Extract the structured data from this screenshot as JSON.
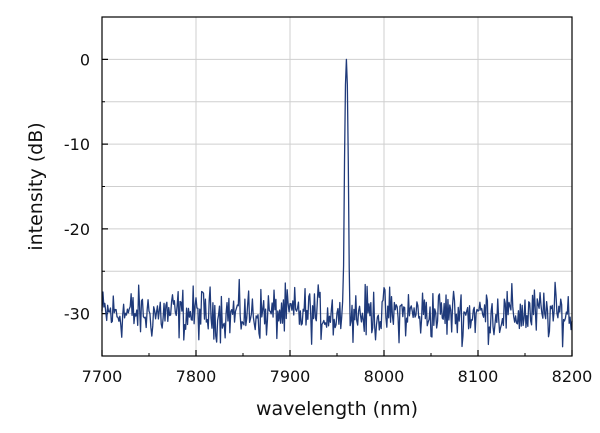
{
  "chart_data": {
    "type": "line",
    "title": "",
    "xlabel": "wavelength (nm)",
    "ylabel": "intensity (dB)",
    "xlim": [
      7700,
      8200
    ],
    "ylim": [
      -35,
      5
    ],
    "x_ticks": [
      7700,
      7800,
      7900,
      8000,
      8100,
      8200
    ],
    "y_ticks": [
      0,
      -10,
      -20,
      -30
    ],
    "x_tick_labels": [
      "7700",
      "7800",
      "7900",
      "8000",
      "8100",
      "8200"
    ],
    "y_tick_labels": [
      "0",
      "-10",
      "-20",
      "-30"
    ],
    "grid": true,
    "series": [
      {
        "color": "#1f3a7a",
        "noise_floor_db": -30,
        "noise_range_db": [
          -35,
          -26
        ],
        "peak_wavelength_nm": 7960,
        "peak_db": 0,
        "peak_fwhm_nm": 2,
        "x_start": 7700,
        "x_end": 8200,
        "x_step": 1
      }
    ]
  }
}
